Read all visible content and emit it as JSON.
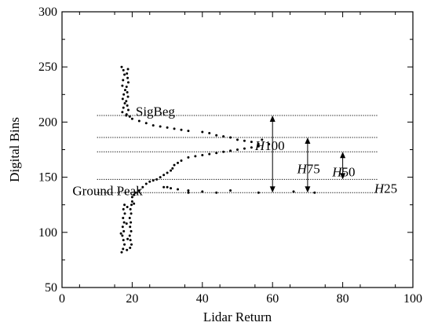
{
  "chart_data": {
    "type": "scatter",
    "xlabel": "Lidar Return",
    "ylabel": "Digital Bins",
    "xlim": [
      0,
      100
    ],
    "ylim": [
      50,
      300
    ],
    "x_ticks": [
      0,
      20,
      40,
      60,
      80,
      100
    ],
    "y_ticks": [
      50,
      100,
      150,
      200,
      250,
      300
    ],
    "x_tick_labels": [
      "0",
      "20",
      "40",
      "60",
      "80",
      "100"
    ],
    "y_tick_labels": [
      "50",
      "100",
      "150",
      "200",
      "250",
      "300"
    ],
    "grid": false,
    "point_color": "#000000",
    "series": [
      {
        "points": [
          [
            17,
            250
          ],
          [
            17.5,
            247
          ],
          [
            17.8,
            243
          ],
          [
            17.4,
            238
          ],
          [
            17.2,
            233
          ],
          [
            18,
            229
          ],
          [
            17.6,
            225
          ],
          [
            17.3,
            221
          ],
          [
            17.9,
            217
          ],
          [
            17.5,
            213
          ],
          [
            17.2,
            209
          ],
          [
            18.3,
            206
          ],
          [
            18.8,
            248
          ],
          [
            18.5,
            244
          ],
          [
            18.7,
            240
          ],
          [
            18.9,
            236
          ],
          [
            18.4,
            232
          ],
          [
            18.6,
            227
          ],
          [
            18.8,
            223
          ],
          [
            18.3,
            219
          ],
          [
            18.6,
            215
          ],
          [
            18.9,
            211
          ],
          [
            18.4,
            207
          ],
          [
            19.3,
            205
          ],
          [
            20,
            203
          ],
          [
            22,
            201
          ],
          [
            24,
            199
          ],
          [
            26,
            197
          ],
          [
            28,
            196
          ],
          [
            30,
            195
          ],
          [
            32,
            194
          ],
          [
            34,
            193
          ],
          [
            36,
            192
          ],
          [
            40,
            191
          ],
          [
            42,
            190
          ],
          [
            44,
            188
          ],
          [
            46,
            187
          ],
          [
            48,
            186
          ],
          [
            50,
            184
          ],
          [
            52,
            183
          ],
          [
            54,
            182
          ],
          [
            56,
            180
          ],
          [
            57,
            184
          ],
          [
            59,
            180
          ],
          [
            56,
            178
          ],
          [
            54,
            177
          ],
          [
            52,
            176
          ],
          [
            50,
            175
          ],
          [
            48,
            174
          ],
          [
            46,
            173
          ],
          [
            44,
            172
          ],
          [
            42,
            171
          ],
          [
            40,
            170
          ],
          [
            38,
            169
          ],
          [
            36,
            168
          ],
          [
            34,
            165
          ],
          [
            33,
            163
          ],
          [
            32,
            161
          ],
          [
            31.5,
            158
          ],
          [
            31,
            156
          ],
          [
            30,
            154
          ],
          [
            29,
            152
          ],
          [
            28,
            150
          ],
          [
            27,
            148
          ],
          [
            26,
            147
          ],
          [
            25,
            146
          ],
          [
            24,
            144
          ],
          [
            23,
            141
          ],
          [
            22,
            138
          ],
          [
            21,
            136
          ],
          [
            20.5,
            134
          ],
          [
            20,
            132
          ],
          [
            36,
            136
          ],
          [
            30,
            141
          ],
          [
            72,
            136
          ],
          [
            66,
            137
          ],
          [
            56,
            136
          ],
          [
            48,
            138
          ],
          [
            44,
            136
          ],
          [
            40,
            137
          ],
          [
            36,
            138
          ],
          [
            33,
            139
          ],
          [
            31,
            140
          ],
          [
            29,
            141
          ],
          [
            20,
            128
          ],
          [
            19.8,
            125
          ],
          [
            19.5,
            121
          ],
          [
            19.7,
            117
          ],
          [
            19.3,
            113
          ],
          [
            19.6,
            109
          ],
          [
            19.4,
            105
          ],
          [
            19.7,
            101
          ],
          [
            19.3,
            97
          ],
          [
            19.5,
            93
          ],
          [
            19.8,
            89
          ],
          [
            19.4,
            86
          ],
          [
            17.8,
            125
          ],
          [
            17.5,
            121
          ],
          [
            17.9,
            117
          ],
          [
            17.4,
            113
          ],
          [
            17.7,
            109
          ],
          [
            17.3,
            105
          ],
          [
            17.6,
            101
          ],
          [
            17.2,
            97
          ],
          [
            17.5,
            93
          ],
          [
            17.8,
            89
          ],
          [
            17.4,
            85
          ],
          [
            17,
            82
          ],
          [
            16.8,
            99
          ],
          [
            18.6,
            123
          ],
          [
            18.4,
            108
          ],
          [
            18.7,
            94
          ],
          [
            18.5,
            84
          ],
          [
            20.5,
            126
          ]
        ]
      }
    ],
    "reference_lines": [
      {
        "y": 206,
        "x_start": 10,
        "x_end": 90
      },
      {
        "y": 186,
        "x_start": 10,
        "x_end": 90
      },
      {
        "y": 173,
        "x_start": 10,
        "x_end": 90
      },
      {
        "y": 148,
        "x_start": 10,
        "x_end": 90
      },
      {
        "y": 136,
        "x_start": 10,
        "x_end": 90
      }
    ],
    "arrows": [
      {
        "x": 60,
        "y_from": 136,
        "y_to": 206,
        "label_prefix": "H",
        "label_number": "100",
        "label_x": 55,
        "label_y": 179
      },
      {
        "x": 70,
        "y_from": 136,
        "y_to": 186,
        "label_prefix": "H",
        "label_number": "75",
        "label_x": 67,
        "label_y": 158
      },
      {
        "x": 80,
        "y_from": 148,
        "y_to": 173,
        "label_prefix": "H",
        "label_number": "50",
        "label_x": 77,
        "label_y": 155
      },
      {
        "x": null,
        "y_from": null,
        "y_to": null,
        "label_prefix": "H",
        "label_number": "25",
        "label_x": 89,
        "label_y": 140
      }
    ],
    "annotations": [
      {
        "text": "SigBeg",
        "x": 21,
        "y": 210
      },
      {
        "text": "Ground Peak",
        "x": 3,
        "y": 138
      }
    ]
  }
}
